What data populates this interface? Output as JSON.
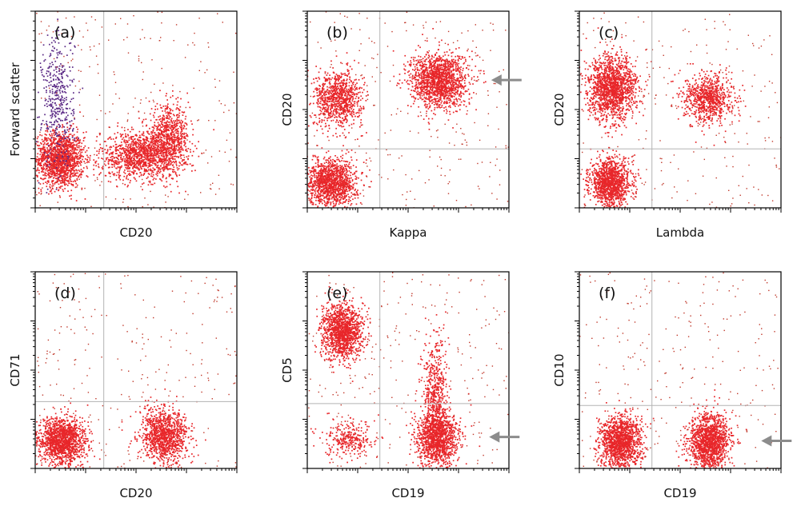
{
  "colors": {
    "events": "#e8262a",
    "events_sparse": "#c0392b",
    "events_ungated": "#5b2a86",
    "gate": "#b3b3b3",
    "arrow": "#8c8c8c"
  },
  "chart_data": [
    {
      "type": "scatter",
      "panel": "(a)",
      "xlabel": "CD20",
      "ylabel": "Forward scatter",
      "arrow": false,
      "x_scale": "log",
      "y_scale": "linear",
      "xlim": [
        0,
        1
      ],
      "ylim": [
        0,
        1
      ],
      "gate": [
        0.34,
        null
      ],
      "populations": [
        {
          "name": "",
          "x": 0.12,
          "y": 0.25,
          "sx": 0.06,
          "sy": 0.07,
          "n": 1500
        },
        {
          "name": "",
          "x": 0.52,
          "y": 0.27,
          "sx": 0.1,
          "sy": 0.06,
          "n": 1200
        },
        {
          "name": "",
          "x": 0.66,
          "y": 0.36,
          "sx": 0.05,
          "sy": 0.08,
          "n": 700
        }
      ],
      "ungated": {
        "x": 0.11,
        "y": 0.55,
        "sx": 0.04,
        "sy": 0.17,
        "n": 420
      }
    },
    {
      "type": "scatter",
      "panel": "(b)",
      "xlabel": "Kappa",
      "ylabel": "CD20",
      "arrow": true,
      "x_scale": "log",
      "y_scale": "log",
      "xlim": [
        0,
        1
      ],
      "ylim": [
        0,
        1
      ],
      "gate": [
        0.36,
        0.3
      ],
      "populations": [
        {
          "name": "",
          "x": 0.15,
          "y": 0.56,
          "sx": 0.06,
          "sy": 0.07,
          "n": 900
        },
        {
          "name": "",
          "x": 0.65,
          "y": 0.65,
          "sx": 0.07,
          "sy": 0.07,
          "n": 1500
        },
        {
          "name": "",
          "x": 0.12,
          "y": 0.13,
          "sx": 0.06,
          "sy": 0.06,
          "n": 1300
        }
      ]
    },
    {
      "type": "scatter",
      "panel": "(c)",
      "xlabel": "Lambda",
      "ylabel": "CD20",
      "arrow": false,
      "x_scale": "log",
      "y_scale": "log",
      "xlim": [
        0,
        1
      ],
      "ylim": [
        0,
        1
      ],
      "gate": [
        0.36,
        0.3
      ],
      "populations": [
        {
          "name": "",
          "x": 0.16,
          "y": 0.61,
          "sx": 0.06,
          "sy": 0.08,
          "n": 1500
        },
        {
          "name": "",
          "x": 0.64,
          "y": 0.56,
          "sx": 0.06,
          "sy": 0.06,
          "n": 800
        },
        {
          "name": "",
          "x": 0.15,
          "y": 0.13,
          "sx": 0.05,
          "sy": 0.06,
          "n": 1200
        }
      ]
    },
    {
      "type": "scatter",
      "panel": "(d)",
      "xlabel": "CD20",
      "ylabel": "CD71",
      "arrow": false,
      "x_scale": "log",
      "y_scale": "log",
      "xlim": [
        0,
        1
      ],
      "ylim": [
        0,
        1
      ],
      "gate": [
        0.34,
        0.34
      ],
      "populations": [
        {
          "name": "",
          "x": 0.13,
          "y": 0.14,
          "sx": 0.06,
          "sy": 0.06,
          "n": 1400
        },
        {
          "name": "",
          "x": 0.64,
          "y": 0.17,
          "sx": 0.06,
          "sy": 0.07,
          "n": 1100
        }
      ]
    },
    {
      "type": "scatter",
      "panel": "(e)",
      "xlabel": "CD19",
      "ylabel": "CD5",
      "arrow": true,
      "x_scale": "log",
      "y_scale": "log",
      "xlim": [
        0,
        1
      ],
      "ylim": [
        0,
        1
      ],
      "gate": [
        0.36,
        0.33
      ],
      "populations": [
        {
          "name": "",
          "x": 0.17,
          "y": 0.7,
          "sx": 0.05,
          "sy": 0.07,
          "n": 1300
        },
        {
          "name": "",
          "x": 0.64,
          "y": 0.16,
          "sx": 0.05,
          "sy": 0.07,
          "n": 1300
        },
        {
          "name": "",
          "x": 0.63,
          "y": 0.4,
          "sx": 0.03,
          "sy": 0.14,
          "n": 500
        },
        {
          "name": "",
          "x": 0.2,
          "y": 0.15,
          "sx": 0.06,
          "sy": 0.05,
          "n": 300
        }
      ]
    },
    {
      "type": "scatter",
      "panel": "(f)",
      "xlabel": "CD19",
      "ylabel": "CD10",
      "arrow": true,
      "x_scale": "log",
      "y_scale": "log",
      "xlim": [
        0,
        1
      ],
      "ylim": [
        0,
        1
      ],
      "gate": [
        0.36,
        0.32
      ],
      "populations": [
        {
          "name": "",
          "x": 0.2,
          "y": 0.13,
          "sx": 0.05,
          "sy": 0.07,
          "n": 1400
        },
        {
          "name": "",
          "x": 0.64,
          "y": 0.14,
          "sx": 0.05,
          "sy": 0.07,
          "n": 1400
        }
      ]
    }
  ]
}
